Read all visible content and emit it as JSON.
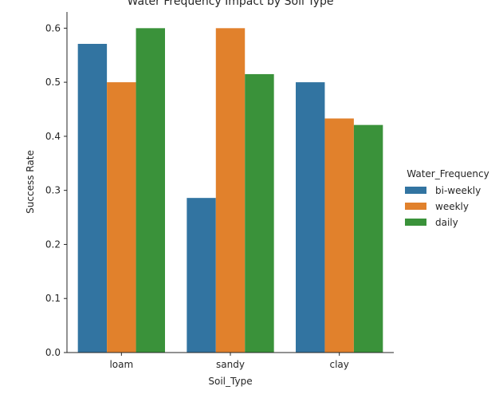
{
  "chart_data": {
    "type": "bar",
    "title": "Water Frequency Impact by Soil Type",
    "xlabel": "Soil_Type",
    "ylabel": "Success Rate",
    "categories": [
      "loam",
      "sandy",
      "clay"
    ],
    "ylim": [
      0,
      0.63
    ],
    "yticks": [
      0.0,
      0.1,
      0.2,
      0.3,
      0.4,
      0.5,
      0.6
    ],
    "ytick_labels": [
      "0.0",
      "0.1",
      "0.2",
      "0.3",
      "0.4",
      "0.5",
      "0.6"
    ],
    "legend_title": "Water_Frequency",
    "legend_position": "right",
    "grid": false,
    "series": [
      {
        "name": "bi-weekly",
        "color": "#3274a1",
        "values": [
          0.571,
          0.286,
          0.5
        ]
      },
      {
        "name": "weekly",
        "color": "#e1812c",
        "values": [
          0.5,
          0.6,
          0.433
        ]
      },
      {
        "name": "daily",
        "color": "#3a923a",
        "values": [
          0.6,
          0.515,
          0.421
        ]
      }
    ]
  }
}
